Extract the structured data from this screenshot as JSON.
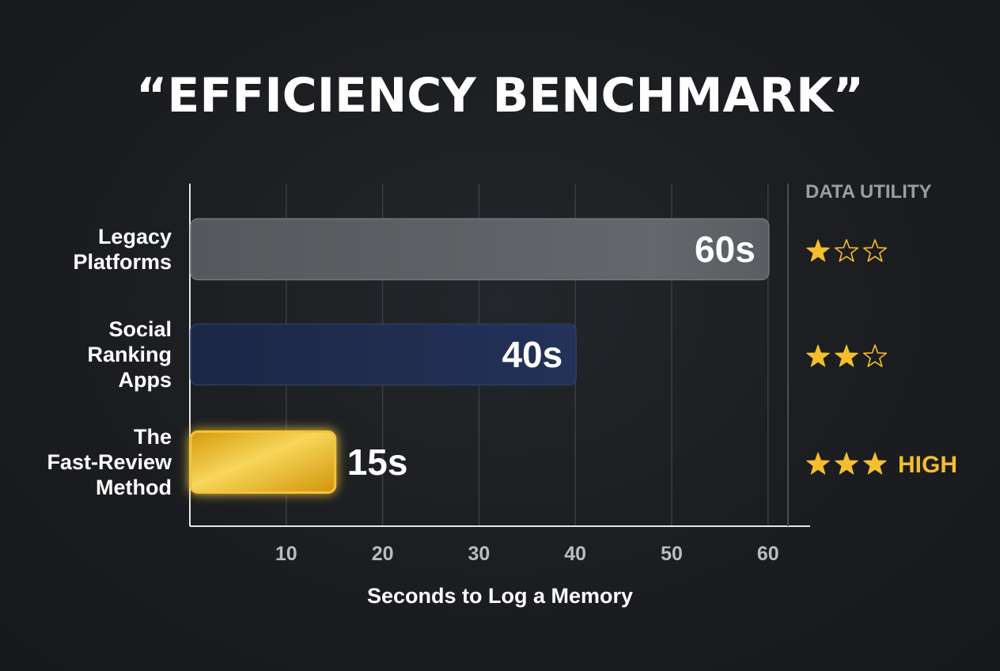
{
  "chart_data": {
    "type": "bar",
    "orientation": "horizontal",
    "title": "“EFFICIENCY BENCHMARK”",
    "xlabel": "Seconds to Log a Memory",
    "ylabel": "",
    "xlim": [
      0,
      62
    ],
    "xticks": [
      "10",
      "20",
      "30",
      "40",
      "50",
      "60"
    ],
    "grid": true,
    "categories": [
      [
        "Legacy",
        "Platforms"
      ],
      [
        "Social",
        "Ranking",
        "Apps"
      ],
      [
        "The",
        "Fast-Review",
        "Method"
      ]
    ],
    "values": [
      60,
      40,
      15
    ],
    "value_labels": [
      "60s",
      "40s",
      "15s"
    ],
    "bar_colors": [
      "#5b5e62",
      "#1f2b4d",
      "#e5ae16"
    ],
    "value_label_colors": [
      "#ffffff",
      "#ffffff",
      "#f5be2e"
    ],
    "utility": {
      "header": "DATA UTILITY",
      "ratings": [
        1,
        2,
        3
      ],
      "max_rating": 3,
      "badges": [
        "",
        "",
        "HIGH"
      ],
      "star_color": "#f5be2e"
    }
  }
}
